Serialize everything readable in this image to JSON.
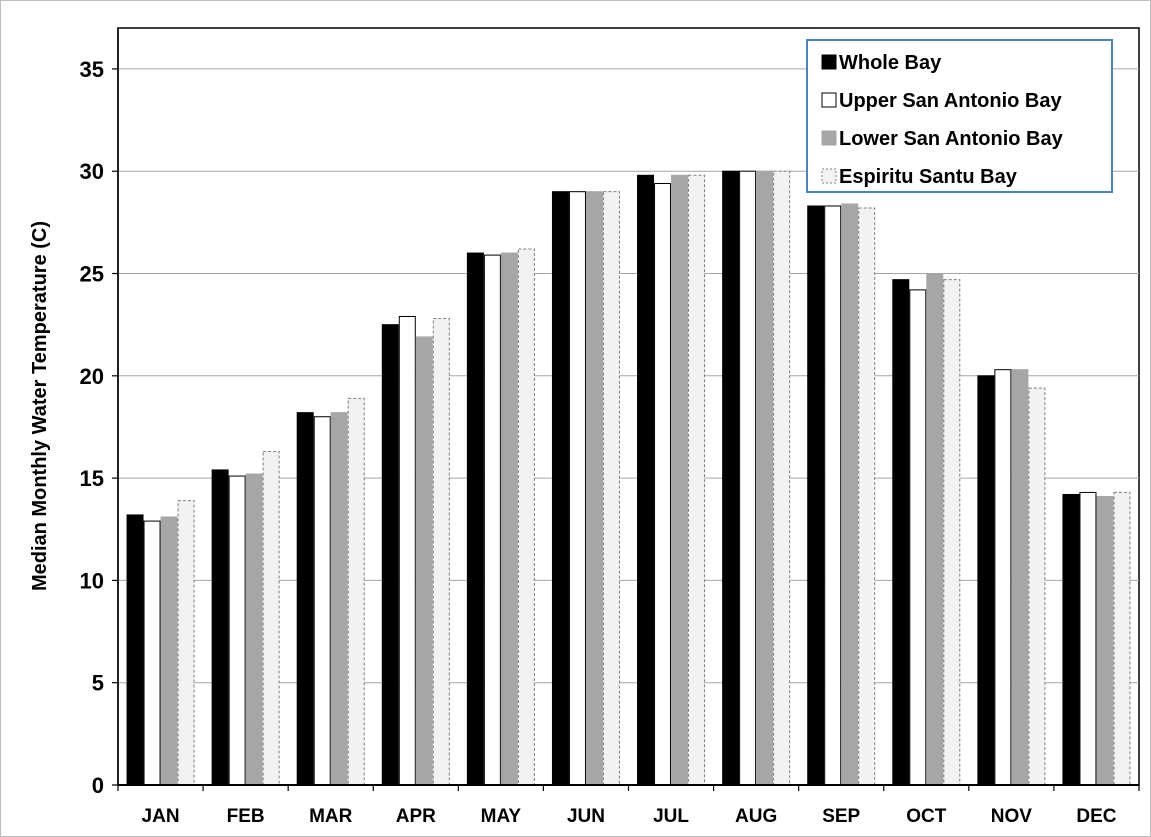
{
  "chart_data": {
    "type": "bar",
    "ylabel": "Median Monthly Water Temperature (C)",
    "xlabel": "",
    "title": "",
    "categories": [
      "JAN",
      "FEB",
      "MAR",
      "APR",
      "MAY",
      "JUN",
      "JUL",
      "AUG",
      "SEP",
      "OCT",
      "NOV",
      "DEC"
    ],
    "ylim": [
      0,
      37
    ],
    "yticks": [
      0,
      5,
      10,
      15,
      20,
      25,
      30,
      35
    ],
    "grid": true,
    "legend_position": "top-right",
    "series": [
      {
        "name": "Whole Bay",
        "fill": "#000000",
        "stroke": "#000000",
        "dashed": false,
        "values": [
          13.2,
          15.4,
          18.2,
          22.5,
          26.0,
          29.0,
          29.8,
          30.0,
          28.3,
          24.7,
          20.0,
          14.2
        ]
      },
      {
        "name": "Upper San Antonio Bay",
        "fill": "#ffffff",
        "stroke": "#000000",
        "dashed": false,
        "values": [
          12.9,
          15.1,
          18.0,
          22.9,
          25.9,
          29.0,
          29.4,
          30.0,
          28.3,
          24.2,
          20.3,
          14.3
        ]
      },
      {
        "name": "Lower San Antonio Bay",
        "fill": "#a6a6a6",
        "stroke": "#a6a6a6",
        "dashed": false,
        "values": [
          13.1,
          15.2,
          18.2,
          21.9,
          26.0,
          29.0,
          29.8,
          30.0,
          28.4,
          25.0,
          20.3,
          14.1
        ]
      },
      {
        "name": "Espiritu Santu Bay",
        "fill": "#f2f2f2",
        "stroke": "#7f7f7f",
        "dashed": true,
        "values": [
          13.9,
          16.3,
          18.9,
          22.8,
          26.2,
          29.0,
          29.8,
          30.0,
          28.2,
          24.7,
          19.4,
          14.3
        ]
      }
    ]
  },
  "legend_border_color": "#4f81bd"
}
